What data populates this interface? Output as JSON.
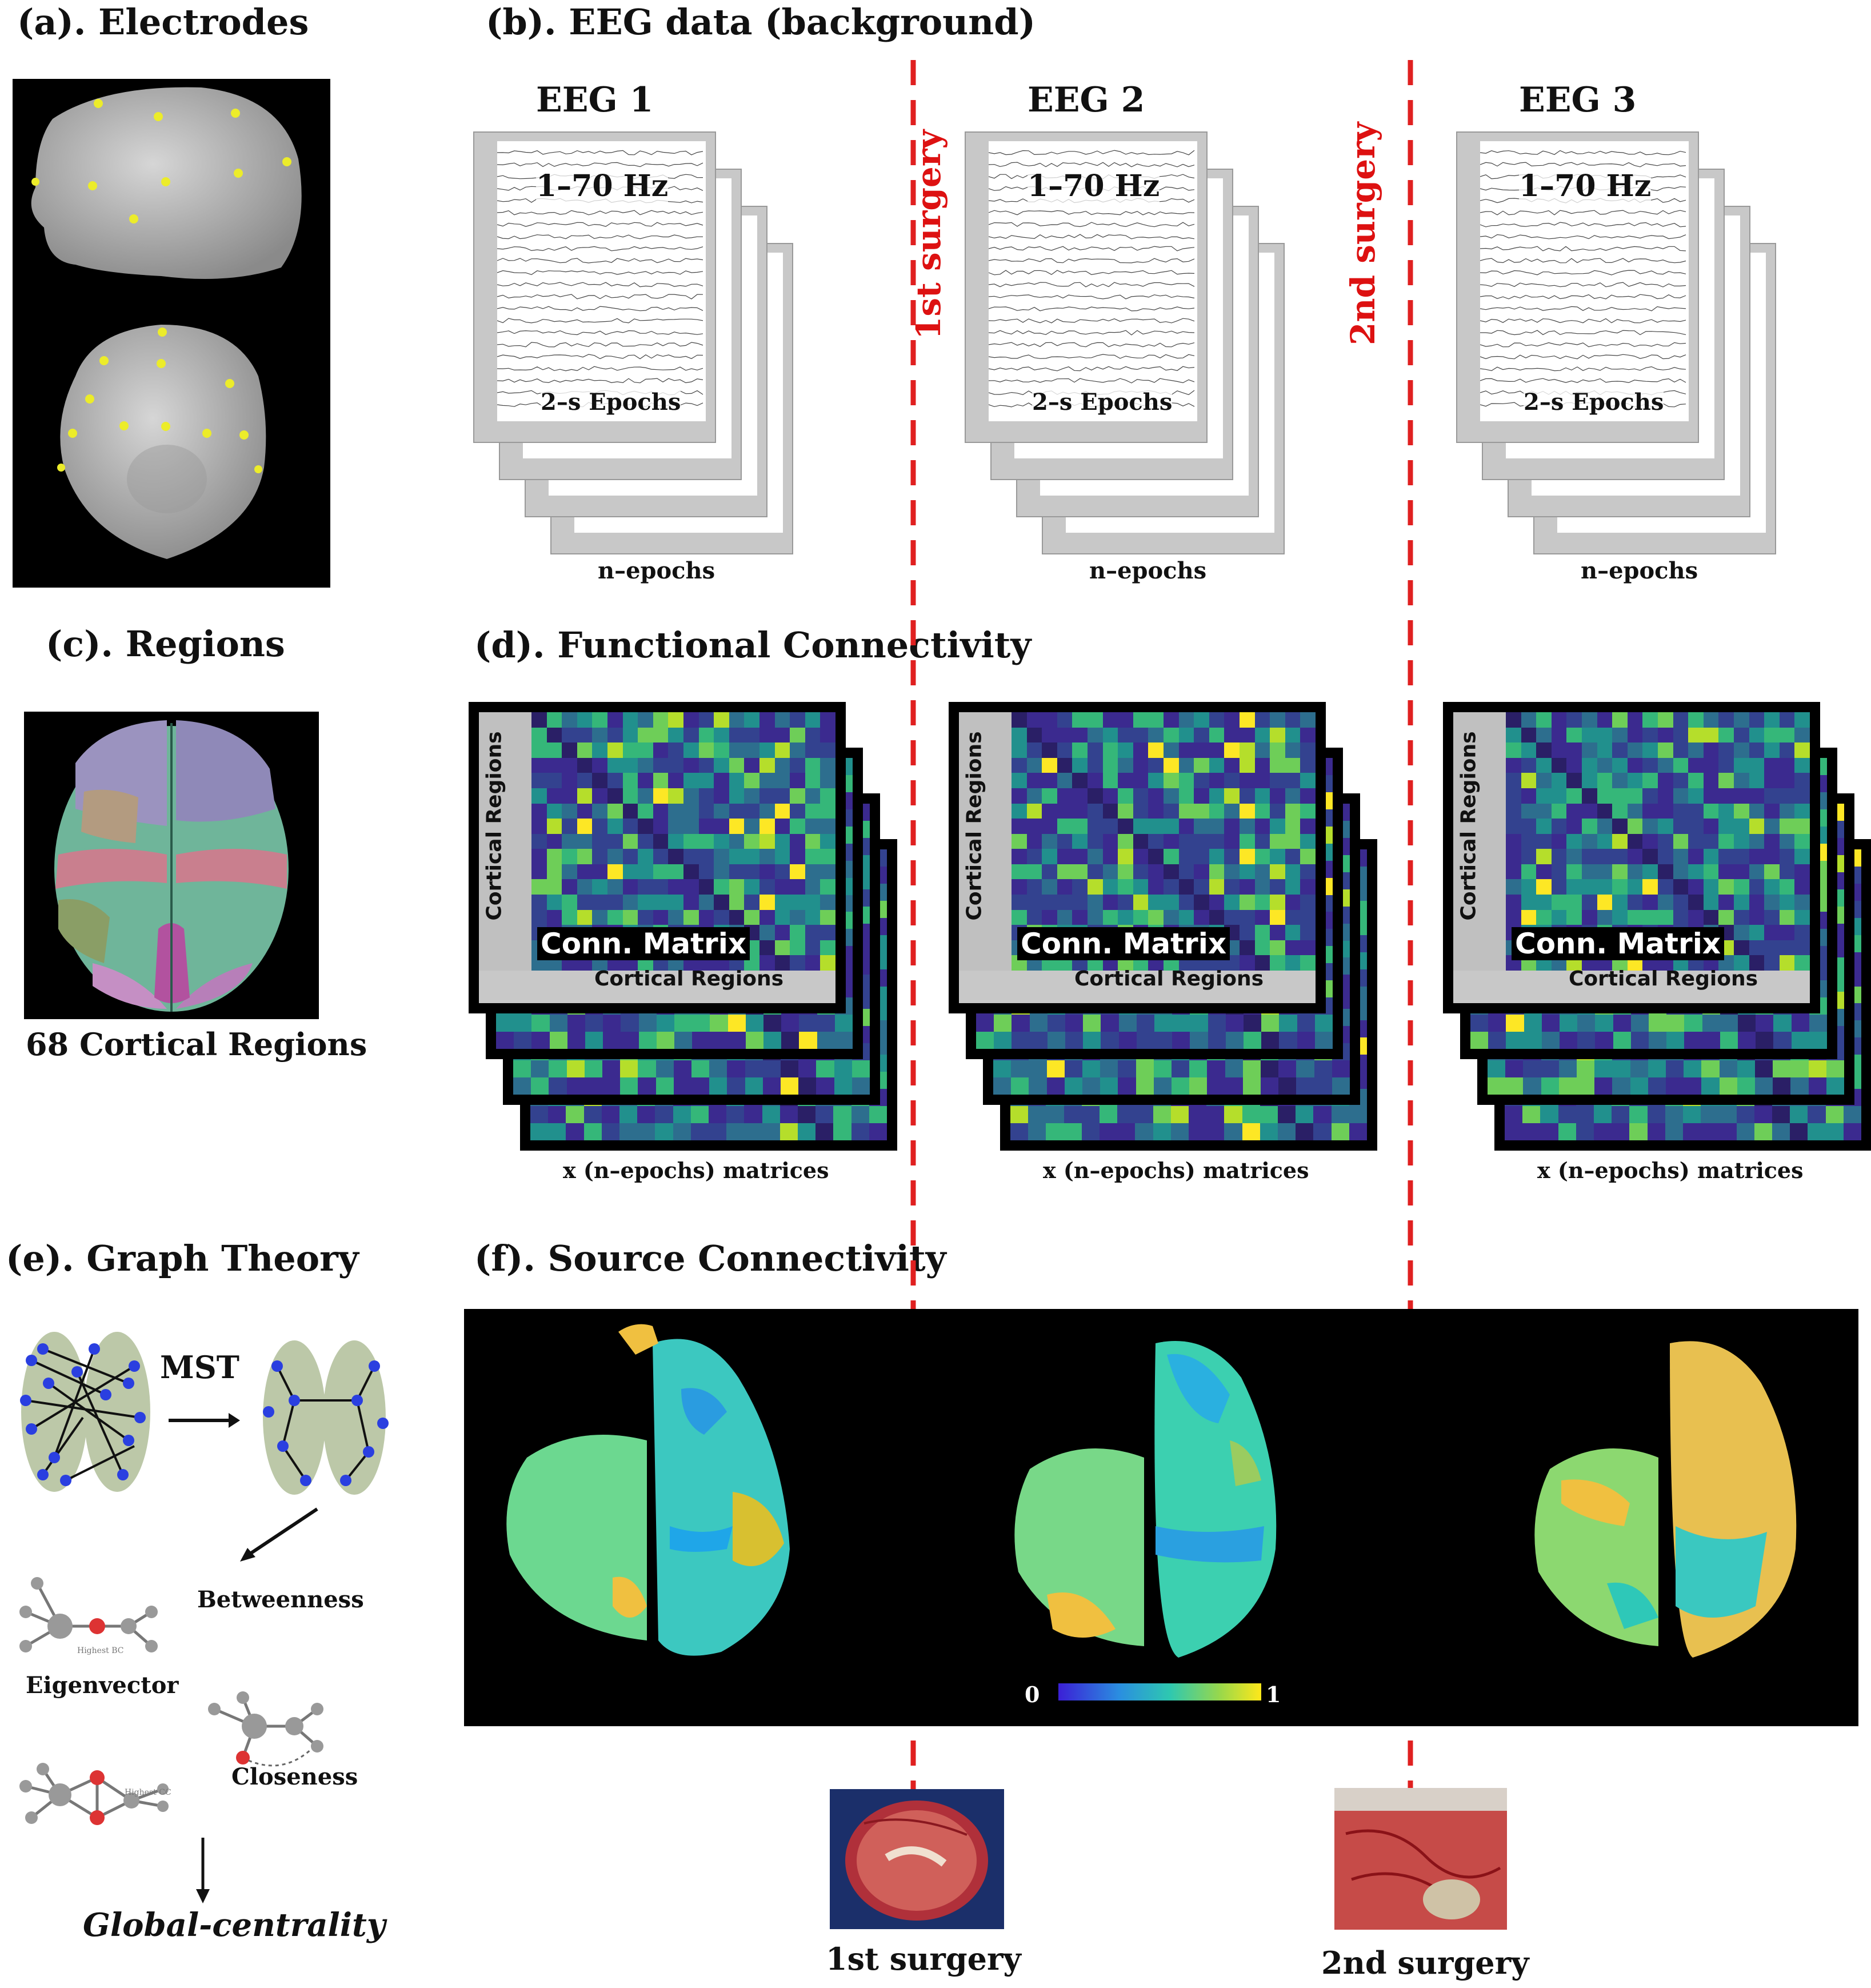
{
  "panels": {
    "a": {
      "title": "(a). Electrodes"
    },
    "b": {
      "title": "(b). EEG data (background)"
    },
    "c": {
      "title": "(c). Regions",
      "caption": "68 Cortical Regions"
    },
    "d": {
      "title": "(d). Functional Connectivity"
    },
    "e": {
      "title": "(e). Graph Theory",
      "mst": "MST",
      "betweenness": "Betweenness",
      "eigenvector": "Eigenvector",
      "closeness": "Closeness",
      "highest_bc": "Highest BC",
      "highest_cc": "Highest CC",
      "global": "Global-centrality"
    },
    "f": {
      "title": "(f). Source Connectivity",
      "scale_min": "0",
      "scale_max": "1"
    }
  },
  "eeg": [
    {
      "title": "EEG 1",
      "band": "1–70 Hz",
      "epochs": "2–s Epochs",
      "count": "n–epochs"
    },
    {
      "title": "EEG 2",
      "band": "1–70 Hz",
      "epochs": "2–s Epochs",
      "count": "n–epochs"
    },
    {
      "title": "EEG 3",
      "band": "1–70 Hz",
      "epochs": "2–s Epochs",
      "count": "n–epochs"
    }
  ],
  "conn": [
    {
      "label": "Conn. Matrix",
      "axis": "Cortical Regions",
      "count": "x (n–epochs) matrices"
    },
    {
      "label": "Conn. Matrix",
      "axis": "Cortical Regions",
      "count": "x (n–epochs) matrices"
    },
    {
      "label": "Conn. Matrix",
      "axis": "Cortical Regions",
      "count": "x (n–epochs) matrices"
    }
  ],
  "surgery": {
    "first": "1st surgery",
    "second": "2nd surgery"
  },
  "colors": {
    "divider": "#e02020",
    "accent_yellow": "#f6e21d",
    "cmap_low": "#3b1fd6",
    "cmap_high": "#ffe81a"
  }
}
